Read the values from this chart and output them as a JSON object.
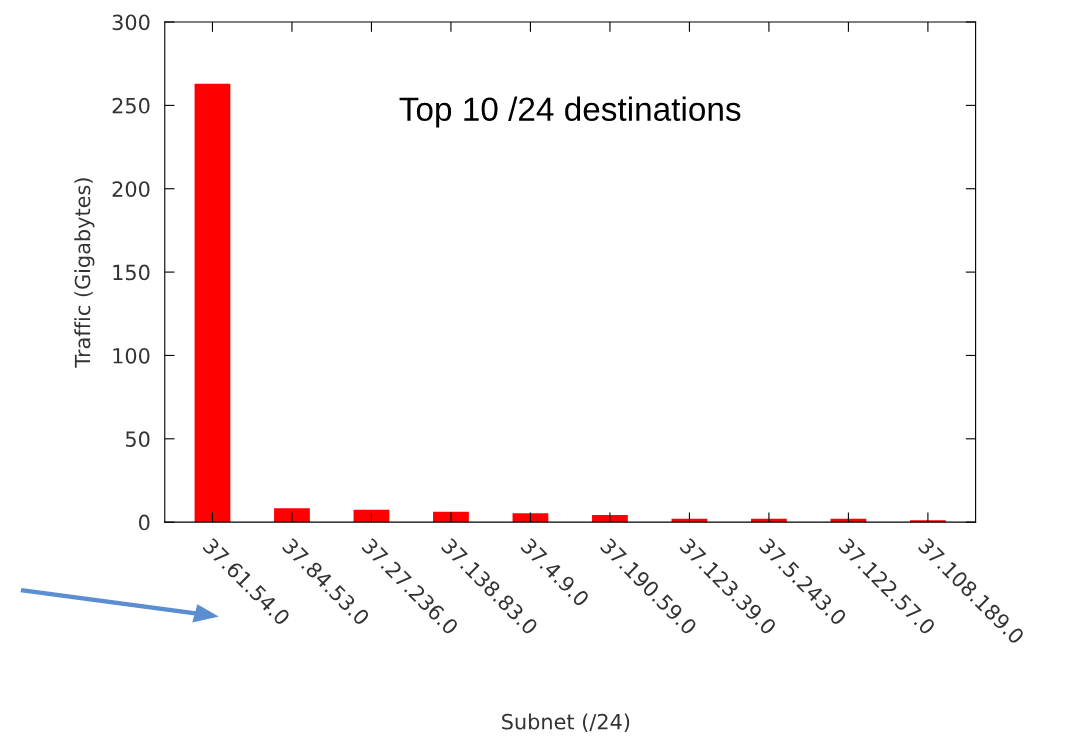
{
  "chart_data": {
    "type": "bar",
    "title": "Top 10 /24 destinations",
    "xlabel": "Subnet (/24)",
    "ylabel": "Traffic (Gigabytes)",
    "categories": [
      "37.61.54.0",
      "37.84.53.0",
      "37.27.236.0",
      "37.138.83.0",
      "37.4.9.0",
      "37.190.59.0",
      "37.123.39.0",
      "37.5.243.0",
      "37.122.57.0",
      "37.108.189.0"
    ],
    "values": [
      263,
      8.4,
      7.5,
      6.2,
      5.3,
      4.3,
      2.1,
      2.1,
      2.1,
      1.2
    ],
    "color": "#ff0000",
    "ylim": [
      0,
      300
    ],
    "yticks": [
      0,
      50,
      100,
      150,
      200,
      250,
      300
    ],
    "grid": false,
    "legend": false
  }
}
